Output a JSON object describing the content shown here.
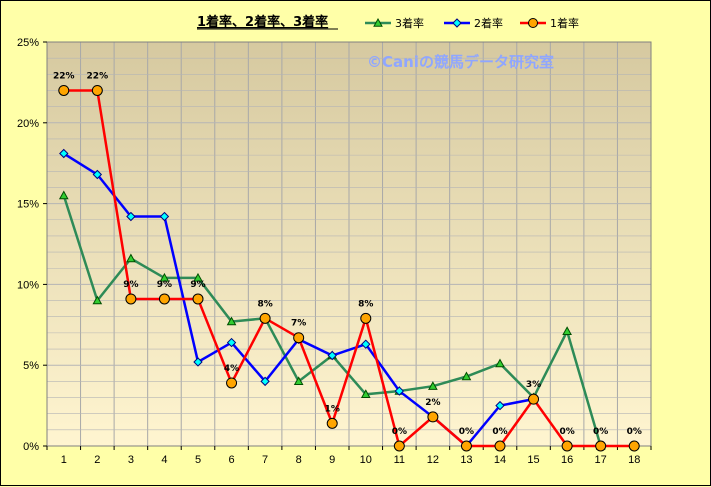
{
  "chart_data": {
    "type": "line",
    "title": "1着率、2着率、3着率",
    "watermark": "©Caniの競馬データ研究室",
    "categories": [
      "1",
      "2",
      "3",
      "4",
      "5",
      "6",
      "7",
      "8",
      "9",
      "10",
      "11",
      "12",
      "13",
      "14",
      "15",
      "16",
      "17",
      "18"
    ],
    "ylim": [
      0,
      25
    ],
    "yticks": [
      0,
      5,
      10,
      15,
      20,
      25
    ],
    "ytick_labels": [
      "0%",
      "5%",
      "10%",
      "15%",
      "20%",
      "25%"
    ],
    "grid": true,
    "legend_position": "top-right",
    "series": [
      {
        "name": "3着率",
        "color": "#2e8b57",
        "marker": "triangle",
        "values": [
          15.5,
          9.0,
          11.6,
          10.4,
          10.4,
          7.7,
          7.9,
          4.0,
          5.6,
          3.2,
          3.4,
          3.7,
          4.3,
          5.1,
          3.0,
          7.1,
          0,
          null
        ]
      },
      {
        "name": "2着率",
        "color": "#0000ff",
        "marker": "diamond",
        "values": [
          18.1,
          16.8,
          14.2,
          14.2,
          5.2,
          6.4,
          4.0,
          6.6,
          5.6,
          6.3,
          3.4,
          1.8,
          0,
          2.5,
          2.9,
          null,
          null,
          null
        ]
      },
      {
        "name": "1着率",
        "color": "#ff0000",
        "marker": "circle",
        "values": [
          22.0,
          22.0,
          9.1,
          9.1,
          9.1,
          3.9,
          7.9,
          6.7,
          1.4,
          7.9,
          0,
          1.8,
          0,
          0,
          2.9,
          0,
          0,
          0
        ],
        "data_labels": [
          "22%",
          "22%",
          "9%",
          "9%",
          "9%",
          "4%",
          "8%",
          "7%",
          "1%",
          "8%",
          "0%",
          "2%",
          "0%",
          "0%",
          "3%",
          "0%",
          "0%",
          "0%"
        ]
      }
    ]
  }
}
